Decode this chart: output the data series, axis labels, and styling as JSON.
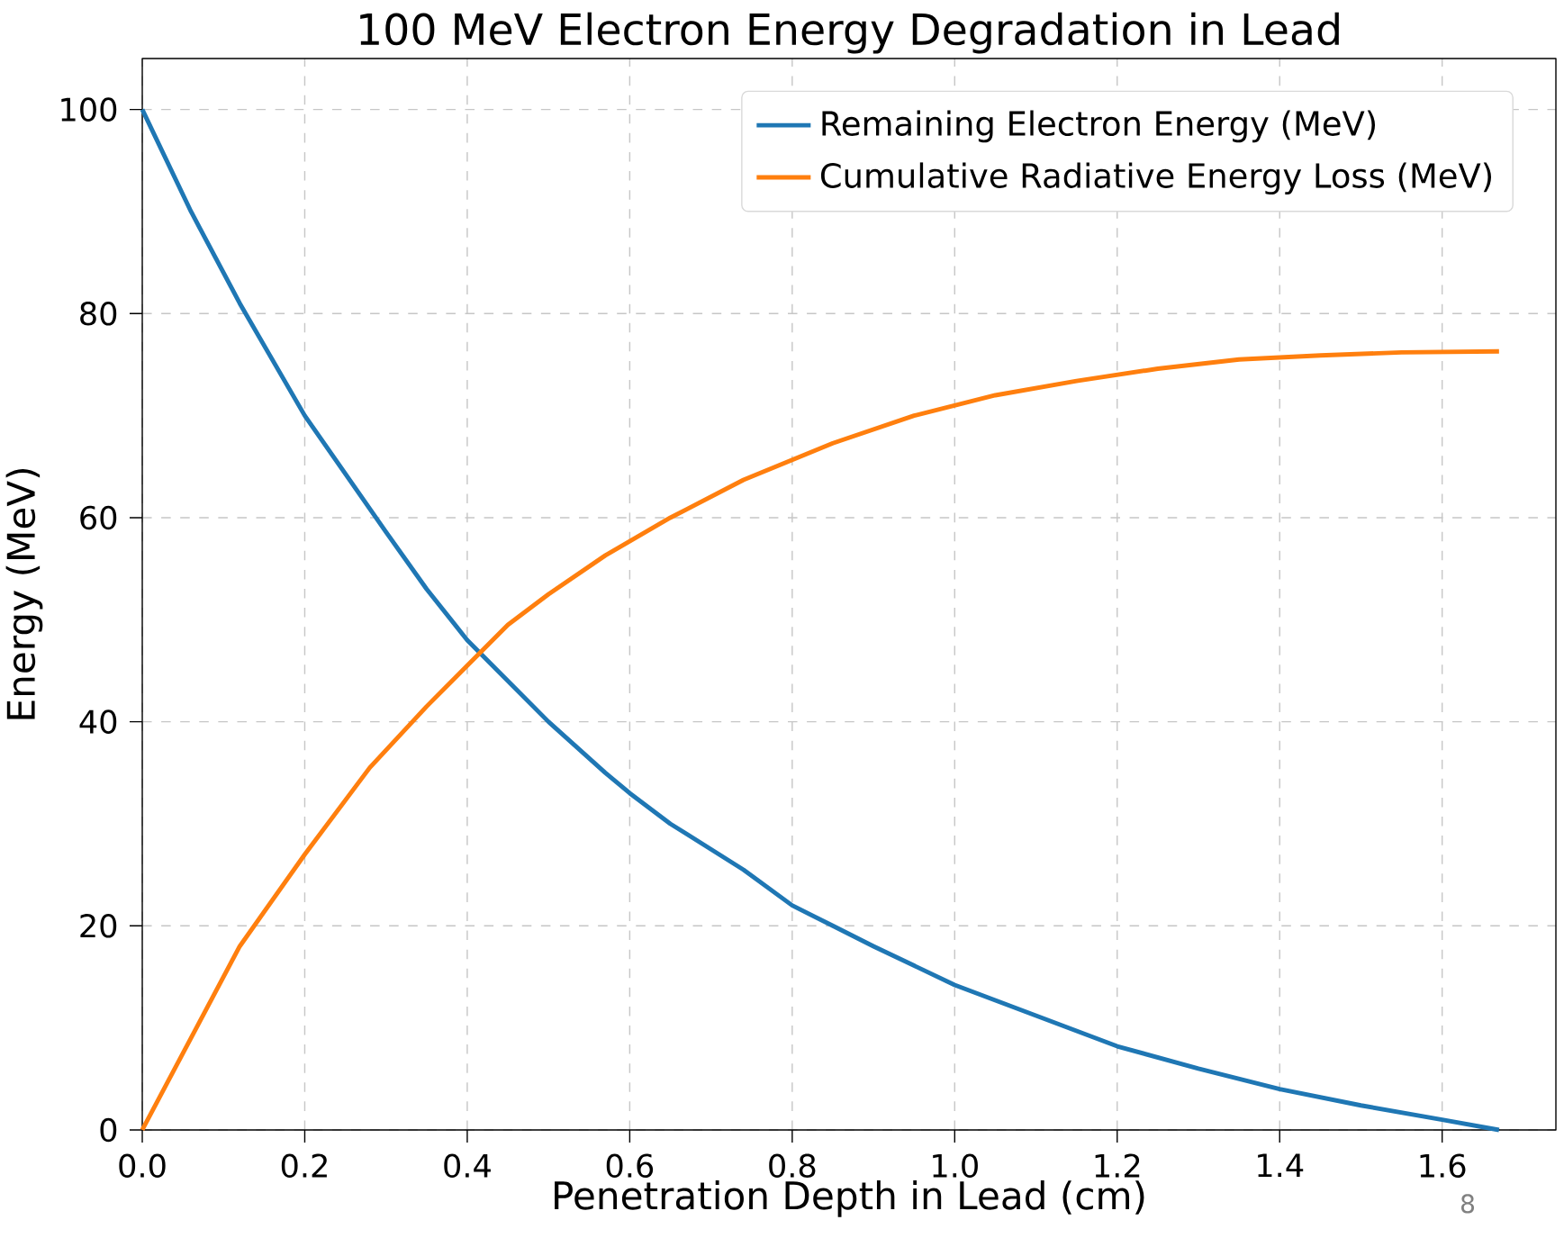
{
  "chart_data": {
    "type": "line",
    "title": "100 MeV Electron Energy Degradation in Lead",
    "xlabel": "Penetration Depth in Lead (cm)",
    "ylabel": "Energy (MeV)",
    "xlim": [
      0,
      1.74
    ],
    "ylim": [
      0,
      105
    ],
    "xticks": [
      {
        "value": 0,
        "label": "0.0"
      },
      0.2,
      0.4,
      0.6,
      0.8,
      {
        "value": 1,
        "label": "1.0"
      },
      1.2,
      1.4,
      1.6
    ],
    "yticks": [
      0,
      20,
      40,
      60,
      80,
      100
    ],
    "grid": true,
    "legend": "top right",
    "line_style": "solid",
    "marker": "none",
    "annotations": [
      "8"
    ],
    "series": [
      {
        "name": "Remaining Electron Energy (MeV)",
        "color": "#1f77b4",
        "x": [
          0,
          0.06,
          0.12,
          0.2,
          0.3,
          0.35,
          0.4,
          0.45,
          0.5,
          0.57,
          0.6,
          0.65,
          0.74,
          0.8,
          0.85,
          0.9,
          1.0,
          1.05,
          1.1,
          1.2,
          1.3,
          1.4,
          1.5,
          1.6,
          1.67
        ],
        "values": [
          100,
          90,
          81,
          70,
          58.6,
          53,
          48,
          44,
          40,
          35,
          33,
          30,
          25.5,
          22,
          20,
          18,
          14.2,
          12.7,
          11.2,
          8.2,
          6,
          4,
          2.4,
          1,
          0
        ]
      },
      {
        "name": "Cumulative Radiative Energy Loss (MeV)",
        "color": "#ff7f0e",
        "x": [
          0,
          0.06,
          0.12,
          0.2,
          0.28,
          0.35,
          0.4,
          0.45,
          0.5,
          0.57,
          0.65,
          0.74,
          0.85,
          0.95,
          1.05,
          1.15,
          1.25,
          1.35,
          1.45,
          1.55,
          1.67
        ],
        "values": [
          0,
          9,
          18,
          27,
          35.5,
          41.5,
          45.5,
          49.5,
          52.5,
          56.3,
          60,
          63.7,
          67.3,
          70,
          72,
          73.4,
          74.6,
          75.5,
          75.9,
          76.2,
          76.3
        ]
      }
    ]
  }
}
